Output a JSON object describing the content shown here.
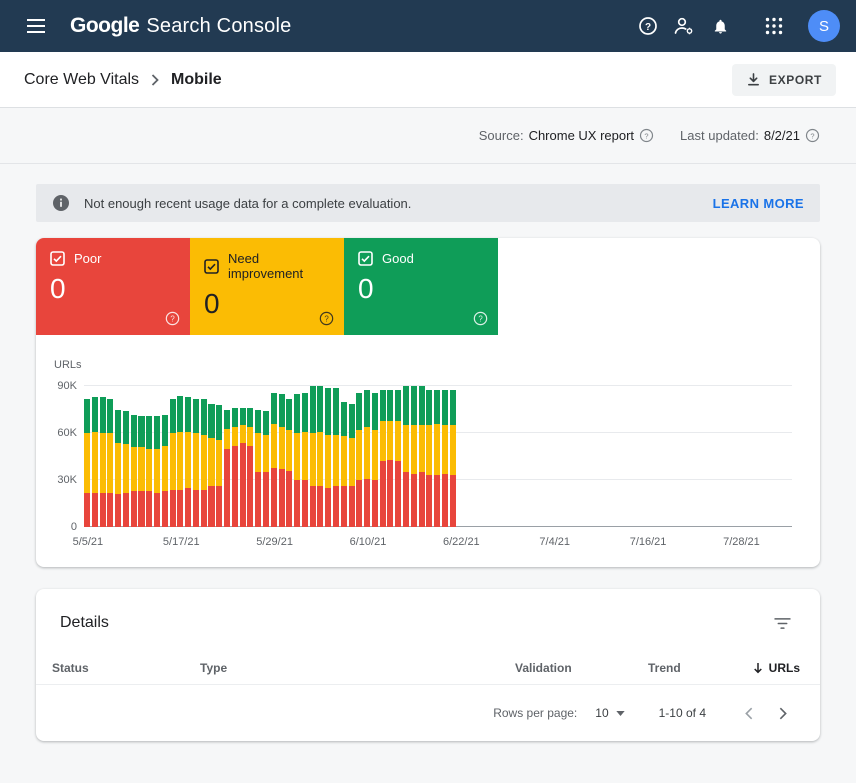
{
  "colors": {
    "topbar_bg": "#223a52",
    "accent_blue": "#1a73e8",
    "poor_red": "#e8453c",
    "improve_yellow": "#fbbc04",
    "good_green": "#0f9d58"
  },
  "topbar": {
    "logo_google": "Google",
    "logo_product": "Search Console",
    "avatar_initial": "S"
  },
  "breadcrumb": {
    "section": "Core Web Vitals",
    "page": "Mobile"
  },
  "toolbar": {
    "export_label": "EXPORT"
  },
  "meta": {
    "source_label": "Source:",
    "source_value": "Chrome UX report",
    "updated_label": "Last updated:",
    "updated_value": "8/2/21"
  },
  "banner": {
    "message": "Not enough recent usage data for a complete evaluation.",
    "action_label": "LEARN MORE"
  },
  "tiles": [
    {
      "label": "Poor",
      "count": "0",
      "bg": "#e8453c",
      "fg": "#ffffff"
    },
    {
      "label": "Need improvement",
      "count": "0",
      "bg": "#fbbc04",
      "fg": "#202124"
    },
    {
      "label": "Good",
      "count": "0",
      "bg": "#0f9d58",
      "fg": "#ffffff"
    }
  ],
  "chart_data": {
    "type": "bar",
    "stacked": true,
    "title": "",
    "ylabel": "URLs",
    "ylim": [
      0,
      96000
    ],
    "yticks": [
      {
        "label": "0",
        "value": 0
      },
      {
        "label": "30K",
        "value": 30000
      },
      {
        "label": "60K",
        "value": 60000
      },
      {
        "label": "90K",
        "value": 90000
      }
    ],
    "x_start_date": "5/5/21",
    "x_total_days": 91,
    "xticks": [
      {
        "label": "5/5/21",
        "day": 0
      },
      {
        "label": "5/17/21",
        "day": 12
      },
      {
        "label": "5/29/21",
        "day": 24
      },
      {
        "label": "6/10/21",
        "day": 36
      },
      {
        "label": "6/22/21",
        "day": 48
      },
      {
        "label": "7/4/21",
        "day": 60
      },
      {
        "label": "7/16/21",
        "day": 72
      },
      {
        "label": "7/28/21",
        "day": 84
      }
    ],
    "series": [
      {
        "name": "Poor",
        "color": "#e8453c",
        "values": [
          22000,
          22000,
          22000,
          22000,
          21000,
          22000,
          23000,
          23000,
          23000,
          22000,
          23000,
          24000,
          24000,
          25000,
          24000,
          24000,
          26000,
          26000,
          50000,
          52000,
          54000,
          52000,
          35000,
          35000,
          38000,
          37000,
          36000,
          30000,
          30000,
          26000,
          26000,
          25000,
          26000,
          26000,
          26000,
          30000,
          31000,
          30000,
          42000,
          43000,
          42000,
          35000,
          34000,
          35000,
          33000,
          33000,
          34000,
          33000
        ]
      },
      {
        "name": "Need improvement",
        "color": "#fbbc04",
        "values": [
          38000,
          39000,
          38000,
          38000,
          33000,
          31000,
          28000,
          28000,
          27000,
          28000,
          29000,
          36000,
          37000,
          36000,
          36000,
          35000,
          31000,
          30000,
          13000,
          12000,
          11000,
          12000,
          25000,
          24000,
          28000,
          27000,
          26000,
          30000,
          31000,
          34000,
          35000,
          34000,
          33000,
          32000,
          31000,
          32000,
          33000,
          32000,
          26000,
          25000,
          26000,
          30000,
          31000,
          30000,
          32000,
          33000,
          31000,
          32000
        ]
      },
      {
        "name": "Good",
        "color": "#0f9d58",
        "values": [
          22000,
          22000,
          23000,
          22000,
          21000,
          21000,
          21000,
          20000,
          21000,
          21000,
          20000,
          22000,
          23000,
          22000,
          22000,
          23000,
          22000,
          22000,
          12000,
          12000,
          11000,
          12000,
          15000,
          15000,
          20000,
          21000,
          20000,
          25000,
          25000,
          30000,
          29000,
          30000,
          30000,
          22000,
          22000,
          24000,
          24000,
          24000,
          20000,
          20000,
          20000,
          25000,
          25000,
          25000,
          23000,
          22000,
          23000,
          23000
        ]
      }
    ]
  },
  "details": {
    "title": "Details",
    "columns": [
      "Status",
      "Type",
      "Validation",
      "Trend",
      "URLs"
    ],
    "sorted_by": "URLs",
    "rows": [],
    "footer": {
      "rows_per_page_label": "Rows per page:",
      "rows_per_page_value": "10",
      "range_text": "1-10 of 4"
    }
  }
}
